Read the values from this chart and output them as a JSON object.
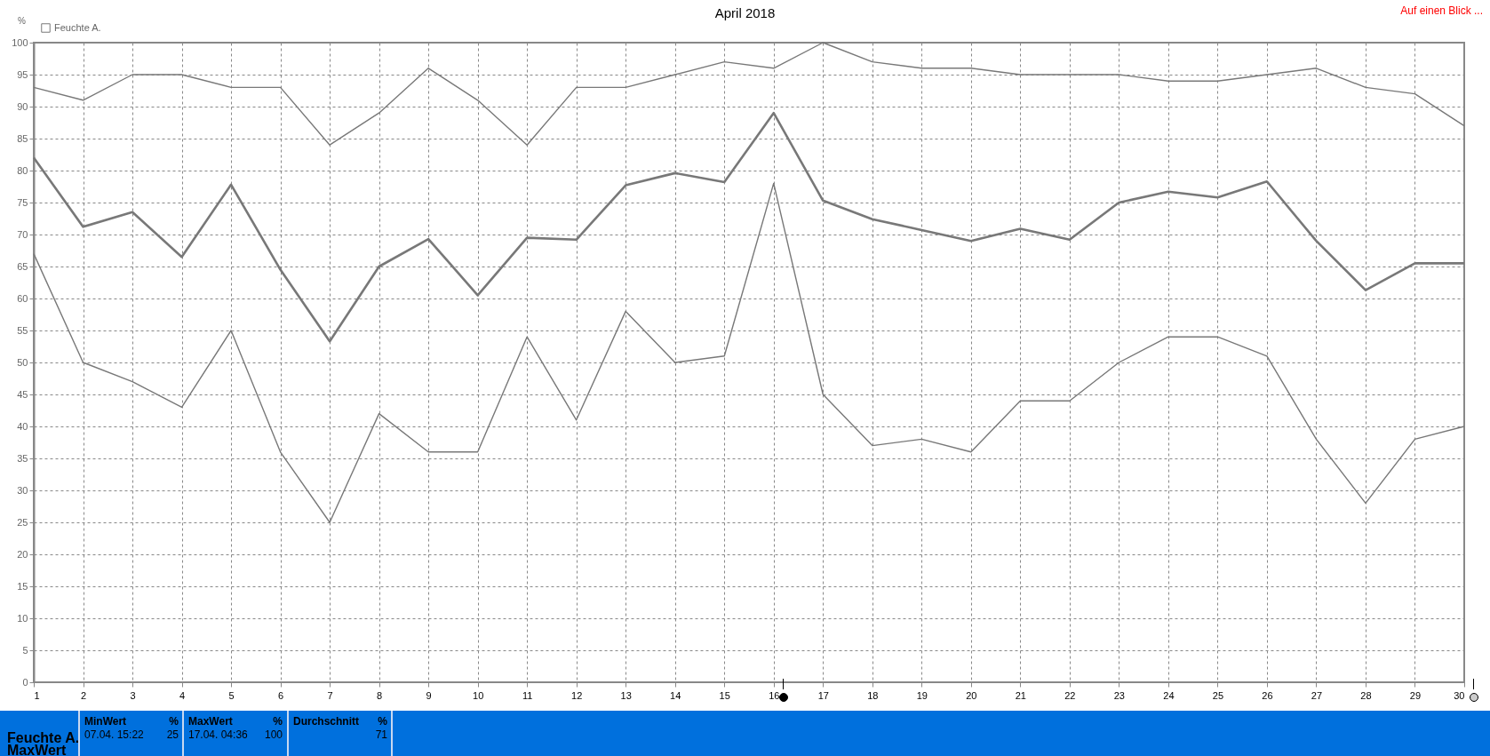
{
  "chart_data": {
    "type": "line",
    "title": "April 2018",
    "ylabel": "%",
    "x": [
      1,
      2,
      3,
      4,
      5,
      6,
      7,
      8,
      9,
      10,
      11,
      12,
      13,
      14,
      15,
      16,
      17,
      18,
      19,
      20,
      21,
      22,
      23,
      24,
      25,
      26,
      27,
      28,
      29,
      30
    ],
    "series": [
      {
        "color": "#787878",
        "values": [
          93,
          91,
          95,
          95,
          93,
          93,
          84,
          89,
          96,
          91,
          84,
          93,
          93,
          95,
          97,
          96,
          100,
          97,
          96,
          96,
          95,
          95,
          95,
          94,
          94,
          95,
          96,
          93,
          92,
          87
        ]
      },
      {
        "name": "Feuchte A.",
        "color": "#787878",
        "values": [
          82,
          71.2,
          73.5,
          66.5,
          77.8,
          64.5,
          53.3,
          65,
          69.3,
          60.5,
          69.5,
          69.2,
          77.7,
          79.6,
          78.2,
          89,
          75.3,
          72.4,
          70.7,
          69,
          70.9,
          69.2,
          75,
          76.7,
          75.8,
          78.3,
          69,
          61.3,
          65.5,
          65.5
        ]
      },
      {
        "color": "#787878",
        "values": [
          67,
          50,
          47,
          43,
          55,
          36,
          25,
          42,
          36,
          36,
          54,
          41,
          58,
          50,
          51,
          78,
          45,
          37,
          38,
          36,
          44,
          44,
          50,
          54,
          54,
          51,
          38,
          28,
          38,
          40
        ]
      }
    ],
    "xlim": [
      1,
      30
    ],
    "xticks": [
      1,
      2,
      3,
      4,
      5,
      6,
      7,
      8,
      9,
      10,
      11,
      12,
      13,
      14,
      15,
      16,
      17,
      18,
      19,
      20,
      21,
      22,
      23,
      24,
      25,
      26,
      27,
      28,
      29,
      30
    ],
    "ylim": [
      0,
      100
    ],
    "yticks": [
      0,
      5,
      10,
      15,
      20,
      25,
      30,
      35,
      40,
      45,
      50,
      55,
      60,
      65,
      70,
      75,
      80,
      85,
      90,
      95,
      100
    ],
    "grid": true,
    "legend": "top left",
    "marker": "none",
    "line_style": "solid",
    "annotations": [
      "Auf einen Blick ...",
      "Feuchte A.",
      "MaxWert",
      "MinWert",
      "%",
      "07.04.  15:22",
      "25",
      "MaxWert",
      "%",
      "17.04.  04:36",
      "100",
      "Durchschnitt",
      "%",
      "71"
    ]
  }
}
